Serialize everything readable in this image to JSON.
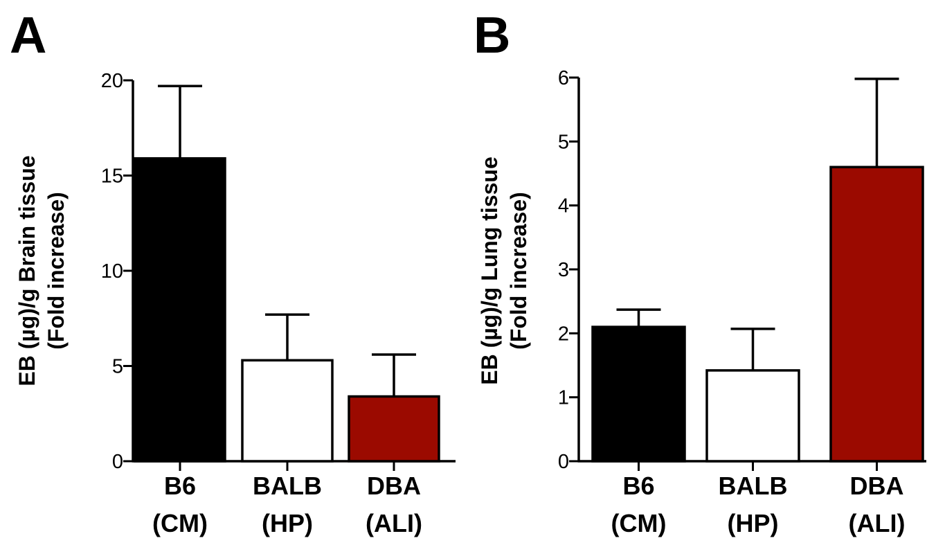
{
  "chart_data": [
    {
      "type": "bar",
      "panel": "A",
      "ylabel": [
        "EB (µg)/g Brain tissue",
        "(Fold increase)"
      ],
      "ylim": [
        0,
        20
      ],
      "yticks": [
        0,
        5,
        10,
        15,
        20
      ],
      "categories": [
        [
          "B6",
          "(CM)"
        ],
        [
          "BALB",
          "(HP)"
        ],
        [
          "DBA",
          "(ALI)"
        ]
      ],
      "values": [
        15.9,
        5.3,
        3.4
      ],
      "errors": [
        3.8,
        2.4,
        2.2
      ],
      "colors": [
        "#000000",
        "#ffffff",
        "#9b0a00"
      ],
      "grid": false
    },
    {
      "type": "bar",
      "panel": "B",
      "ylabel": [
        "EB (µg)/g Lung tissue",
        "(Fold increase)"
      ],
      "ylim": [
        0,
        6
      ],
      "yticks": [
        0,
        1,
        2,
        3,
        4,
        5,
        6
      ],
      "categories": [
        [
          "B6",
          "(CM)"
        ],
        [
          "BALB",
          "(HP)"
        ],
        [
          "DBA",
          "(ALI)"
        ]
      ],
      "values": [
        2.1,
        1.42,
        4.6
      ],
      "errors": [
        0.27,
        0.65,
        1.38
      ],
      "colors": [
        "#000000",
        "#ffffff",
        "#9b0a00"
      ],
      "grid": false
    }
  ]
}
